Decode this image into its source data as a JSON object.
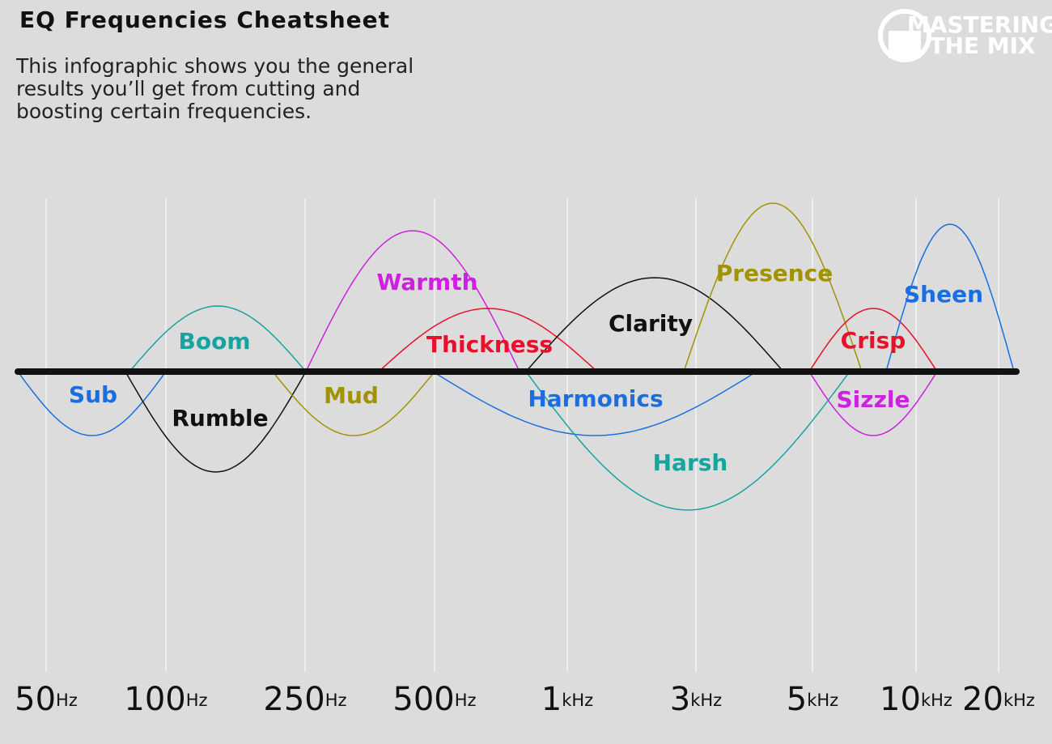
{
  "header": {
    "title": "EQ Frequencies Cheatsheet",
    "description": [
      "This infographic shows you the general",
      "results you’ll get from cutting and",
      "boosting certain frequencies."
    ]
  },
  "logo": {
    "top": "MASTERING",
    "bottom": "THE MIX"
  },
  "frequencies": [
    {
      "number": "50",
      "unit": "Hz"
    },
    {
      "number": "100",
      "unit": "Hz"
    },
    {
      "number": "250",
      "unit": "Hz"
    },
    {
      "number": "500",
      "unit": "Hz"
    },
    {
      "number": "1",
      "unit": "kHz"
    },
    {
      "number": "3",
      "unit": "kHz"
    },
    {
      "number": "5",
      "unit": "kHz"
    },
    {
      "number": "10",
      "unit": "kHz"
    },
    {
      "number": "20",
      "unit": "kHz"
    }
  ],
  "bands": [
    {
      "name": "Sub",
      "color": "#1a6fe0"
    },
    {
      "name": "Boom",
      "color": "#17a3a0"
    },
    {
      "name": "Rumble",
      "color": "#111111"
    },
    {
      "name": "Mud",
      "color": "#a39200"
    },
    {
      "name": "Warmth",
      "color": "#cc22dd"
    },
    {
      "name": "Thickness",
      "color": "#e8102a"
    },
    {
      "name": "Clarity",
      "color": "#111111"
    },
    {
      "name": "Harmonics",
      "color": "#1a6fe0"
    },
    {
      "name": "Harsh",
      "color": "#17a3a0"
    },
    {
      "name": "Presence",
      "color": "#a39200"
    },
    {
      "name": "Crisp",
      "color": "#e8102a"
    },
    {
      "name": "Sizzle",
      "color": "#cc22dd"
    },
    {
      "name": "Sheen",
      "color": "#1a6fe0"
    }
  ]
}
